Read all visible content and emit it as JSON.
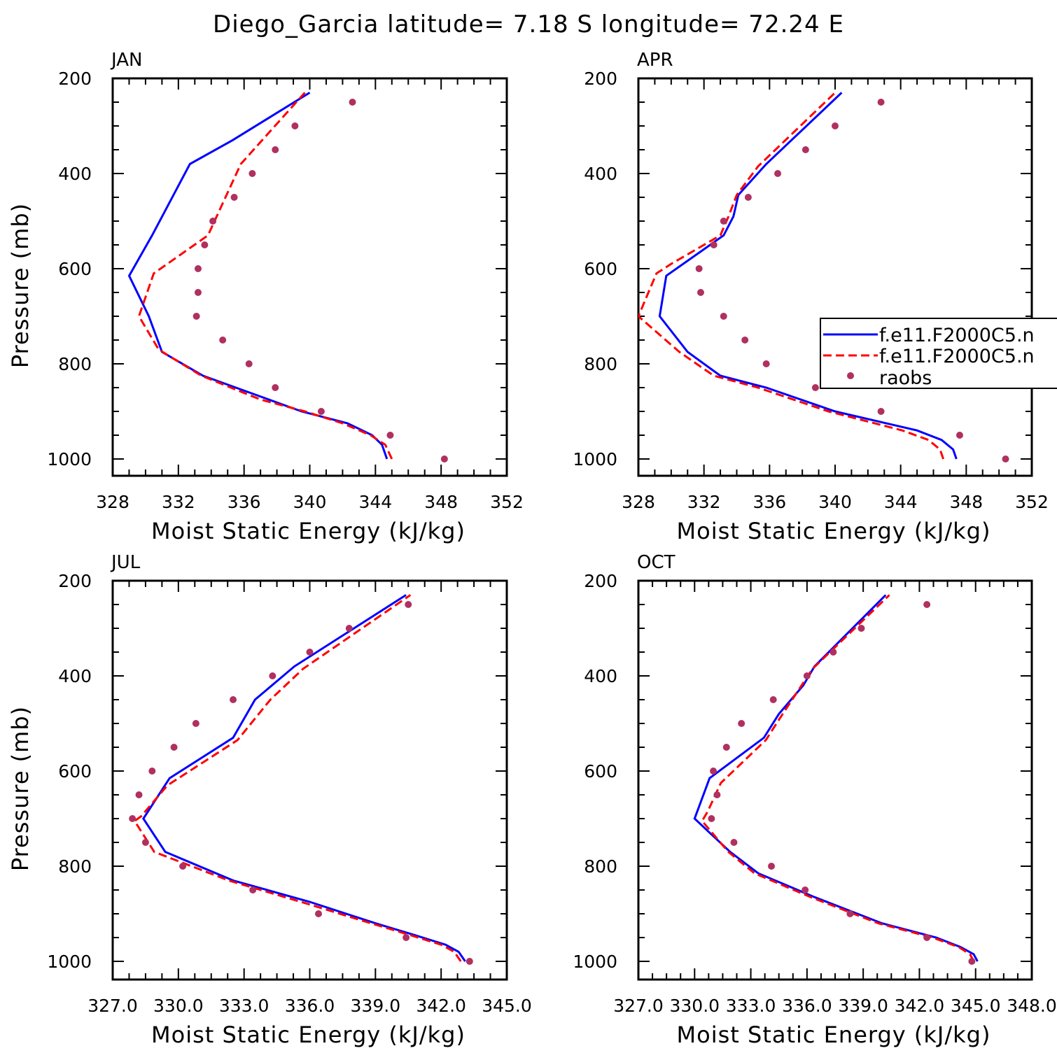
{
  "title": "Diego_Garcia  latitude= 7.18 S longitude= 72.24 E",
  "colors": {
    "model_1": "#0000ff",
    "model_2": "#ff0000",
    "raobs": "#b03060",
    "axes": "#000000"
  },
  "legend": {
    "entries": [
      "f.e11.F2000C5.n",
      "f.e11.F2000C5.n",
      "raobs"
    ]
  },
  "chart_data": [
    {
      "type": "line",
      "panel": "JAN",
      "xlabel": "Moist Static Energy (kJ/kg)",
      "ylabel": "Pressure (mb)",
      "xlim": [
        328,
        352
      ],
      "ylim": [
        1000,
        200
      ],
      "xticks": [
        "328",
        "332",
        "336",
        "340",
        "344",
        "348",
        "352"
      ],
      "yticks": [
        "200",
        "400",
        "600",
        "800",
        "1000"
      ],
      "series": [
        {
          "name": "f.e11.F2000C5.n",
          "style": "solid",
          "x": [
            344.7,
            344.4,
            343.8,
            342.3,
            339.5,
            335.5,
            333.5,
            331.0,
            330.2,
            329.0,
            330.4,
            332.7,
            335.3,
            340.0
          ],
          "y": [
            1000,
            970,
            950,
            925,
            900,
            850,
            825,
            775,
            700,
            615,
            530,
            380,
            330,
            230
          ]
        },
        {
          "name": "f.e11.F2000C5.n",
          "style": "dashed",
          "x": [
            345.0,
            344.6,
            343.7,
            342.0,
            339.7,
            337.0,
            335.2,
            333.4,
            330.8,
            329.6,
            330.5,
            333.8,
            335.8,
            339.7
          ],
          "y": [
            1000,
            970,
            950,
            925,
            900,
            875,
            850,
            825,
            770,
            700,
            610,
            530,
            380,
            230
          ]
        },
        {
          "name": "raobs",
          "style": "points",
          "x": [
            348.2,
            344.9,
            340.7,
            337.9,
            336.3,
            334.7,
            333.1,
            333.2,
            333.2,
            333.6,
            334.1,
            335.4,
            336.5,
            337.9,
            339.1,
            342.6
          ],
          "y": [
            1000,
            950,
            900,
            850,
            800,
            750,
            700,
            650,
            600,
            550,
            500,
            450,
            400,
            350,
            300,
            250
          ]
        }
      ]
    },
    {
      "type": "line",
      "panel": "APR",
      "xlabel": "Moist Static Energy (kJ/kg)",
      "ylabel": "",
      "xlim": [
        328,
        352
      ],
      "ylim": [
        1000,
        200
      ],
      "xticks": [
        "328",
        "332",
        "336",
        "340",
        "344",
        "348",
        "352"
      ],
      "yticks": [
        "200",
        "400",
        "600",
        "800",
        "1000"
      ],
      "series": [
        {
          "name": "f.e11.F2000C5.n",
          "style": "solid",
          "x": [
            347.4,
            347.2,
            346.5,
            345.0,
            340.0,
            335.8,
            333.0,
            331.0,
            329.3,
            329.7,
            333.2,
            333.8,
            334.1,
            335.8,
            340.4
          ],
          "y": [
            1000,
            980,
            960,
            940,
            900,
            850,
            825,
            775,
            700,
            615,
            530,
            490,
            445,
            380,
            230
          ]
        },
        {
          "name": "f.e11.F2000C5.n",
          "style": "dashed",
          "x": [
            346.6,
            346.4,
            345.7,
            344.1,
            339.6,
            335.3,
            332.6,
            330.5,
            328.0,
            329.1,
            330.0,
            333.0,
            333.5,
            334.0,
            335.3,
            340.0
          ],
          "y": [
            1000,
            980,
            960,
            940,
            900,
            850,
            825,
            775,
            700,
            610,
            590,
            530,
            490,
            445,
            385,
            230
          ]
        },
        {
          "name": "raobs",
          "style": "points",
          "x": [
            350.4,
            347.6,
            342.8,
            338.8,
            335.8,
            334.5,
            333.2,
            331.8,
            331.7,
            332.6,
            333.2,
            334.7,
            336.5,
            338.2,
            340.0,
            342.8
          ],
          "y": [
            1000,
            950,
            900,
            850,
            800,
            750,
            700,
            650,
            600,
            550,
            500,
            450,
            400,
            350,
            300,
            250
          ]
        }
      ]
    },
    {
      "type": "line",
      "panel": "JUL",
      "xlabel": "Moist Static Energy (kJ/kg)",
      "ylabel": "Pressure (mb)",
      "xlim": [
        327.0,
        345.0
      ],
      "ylim": [
        1000,
        200
      ],
      "xticks": [
        "327.0",
        "330.0",
        "333.0",
        "336.0",
        "339.0",
        "342.0",
        "345.0"
      ],
      "yticks": [
        "200",
        "400",
        "600",
        "800",
        "1000"
      ],
      "series": [
        {
          "name": "f.e11.F2000C5.n",
          "style": "solid",
          "x": [
            343.1,
            342.8,
            342.2,
            340.8,
            339.0,
            336.0,
            332.5,
            329.4,
            328.4,
            329.6,
            332.5,
            333.5,
            335.3,
            340.4
          ],
          "y": [
            1000,
            980,
            965,
            945,
            920,
            875,
            830,
            770,
            700,
            615,
            530,
            450,
            380,
            230
          ]
        },
        {
          "name": "f.e11.F2000C5.n",
          "style": "dashed",
          "x": [
            342.9,
            342.6,
            342.0,
            340.6,
            338.8,
            335.6,
            332.3,
            328.9,
            328.0,
            328.3,
            329.5,
            332.7,
            334.2,
            335.7,
            340.6
          ],
          "y": [
            1000,
            980,
            965,
            945,
            920,
            875,
            830,
            770,
            705,
            695,
            630,
            535,
            450,
            385,
            230
          ]
        },
        {
          "name": "raobs",
          "style": "points",
          "x": [
            343.3,
            340.4,
            336.4,
            333.4,
            330.2,
            328.5,
            327.9,
            328.2,
            328.8,
            329.8,
            330.8,
            332.5,
            334.3,
            336.0,
            337.8,
            340.5
          ],
          "y": [
            1000,
            950,
            900,
            850,
            800,
            750,
            700,
            650,
            600,
            550,
            500,
            450,
            400,
            350,
            300,
            250
          ]
        }
      ]
    },
    {
      "type": "line",
      "panel": "OCT",
      "xlabel": "Moist Static Energy (kJ/kg)",
      "ylabel": "",
      "xlim": [
        327.0,
        348.0
      ],
      "ylim": [
        1000,
        200
      ],
      "xticks": [
        "327.0",
        "330.0",
        "333.0",
        "336.0",
        "339.0",
        "342.0",
        "345.0",
        "348.0"
      ],
      "yticks": [
        "200",
        "400",
        "600",
        "800",
        "1000"
      ],
      "series": [
        {
          "name": "f.e11.F2000C5.n",
          "style": "solid",
          "x": [
            345.1,
            344.9,
            344.2,
            342.9,
            340.0,
            336.4,
            333.4,
            331.9,
            330.0,
            330.8,
            333.7,
            334.5,
            335.8,
            336.4,
            340.2
          ],
          "y": [
            1000,
            985,
            970,
            950,
            920,
            865,
            815,
            770,
            700,
            615,
            530,
            480,
            420,
            380,
            230
          ]
        },
        {
          "name": "f.e11.F2000C5.n",
          "style": "dashed",
          "x": [
            344.9,
            344.7,
            344.1,
            342.7,
            339.8,
            336.2,
            333.2,
            331.8,
            330.4,
            330.7,
            331.4,
            333.8,
            334.7,
            336.3,
            340.4
          ],
          "y": [
            1000,
            985,
            970,
            950,
            920,
            865,
            815,
            770,
            705,
            685,
            625,
            535,
            480,
            385,
            230
          ]
        },
        {
          "name": "raobs",
          "style": "points",
          "x": [
            344.8,
            342.4,
            338.3,
            335.9,
            334.1,
            332.1,
            330.9,
            331.2,
            331.0,
            331.7,
            332.5,
            334.2,
            336.0,
            337.4,
            338.9,
            342.4
          ],
          "y": [
            1000,
            950,
            900,
            850,
            800,
            750,
            700,
            650,
            600,
            550,
            500,
            450,
            400,
            350,
            300,
            250
          ]
        }
      ]
    }
  ]
}
